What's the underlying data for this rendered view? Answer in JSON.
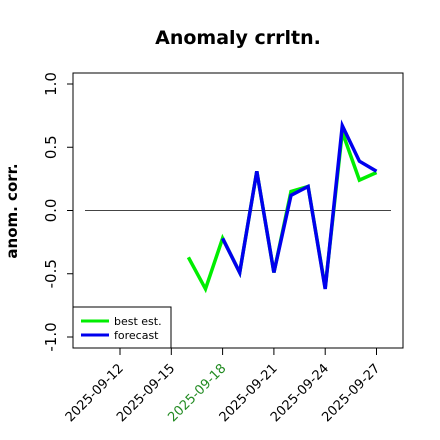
{
  "chart_data": {
    "type": "line",
    "title": "Anomaly crrltn.",
    "xlabel": "",
    "ylabel": "anom. corr.",
    "ylim": [
      -1.0,
      1.0
    ],
    "yticks": [
      "-1.0",
      "-0.5",
      "0.0",
      "0.5",
      "1.0"
    ],
    "ytick_values": [
      -1.0,
      -0.5,
      0.0,
      0.5,
      1.0
    ],
    "xtick_labels": [
      "2025-09-12",
      "2025-09-15",
      "2025-09-18",
      "2025-09-21",
      "2025-09-24",
      "2025-09-27"
    ],
    "highlight_tick": "2025-09-18",
    "highlight_color": "#228B22",
    "reference_line": 0.0,
    "dates": [
      "2025-09-16",
      "2025-09-17",
      "2025-09-18",
      "2025-09-19",
      "2025-09-20",
      "2025-09-21",
      "2025-09-22",
      "2025-09-23",
      "2025-09-24",
      "2025-09-25",
      "2025-09-26",
      "2025-09-27"
    ],
    "series": [
      {
        "name": "best est.",
        "color": "#00ee00",
        "values": [
          -0.37,
          -0.62,
          -0.22,
          -0.49,
          0.31,
          -0.49,
          0.15,
          0.19,
          -0.61,
          0.62,
          0.24,
          0.3
        ]
      },
      {
        "name": "forecast",
        "color": "#0000ee",
        "values": [
          null,
          null,
          -0.22,
          -0.49,
          0.31,
          -0.49,
          0.12,
          0.19,
          -0.62,
          0.67,
          0.39,
          0.31
        ]
      }
    ],
    "legend_position": "bottom-left"
  }
}
